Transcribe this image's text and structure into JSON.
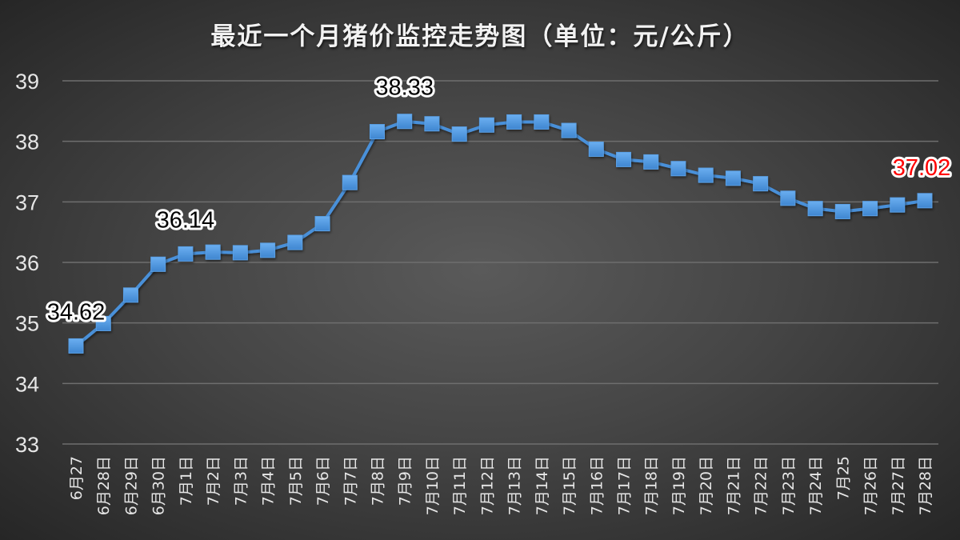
{
  "chart_data": {
    "type": "line",
    "title": "最近一个月猪价监控走势图（单位：元/公斤）",
    "xlabel": "",
    "ylabel": "",
    "ylim": [
      33,
      39
    ],
    "yticks": [
      33,
      34,
      35,
      36,
      37,
      38,
      39
    ],
    "grid": true,
    "legend": null,
    "categories": [
      "6月27",
      "6月28日",
      "6月29日",
      "6月30日",
      "7月1日",
      "7月2日",
      "7月3日",
      "7月4日",
      "7月5日",
      "7月6日",
      "7月7日",
      "7月8日",
      "7月9日",
      "7月10日",
      "7月11日",
      "7月12日",
      "7月13日",
      "7月14日",
      "7月15日",
      "7月16日",
      "7月17日",
      "7月18日",
      "7月19日",
      "7月20日",
      "7月21日",
      "7月22日",
      "7月23日",
      "7月24日",
      "7月25",
      "7月26日",
      "7月27日",
      "7月28日"
    ],
    "series": [
      {
        "name": "猪价",
        "color": "#4a90d9",
        "values": [
          34.62,
          34.99,
          35.46,
          35.97,
          36.14,
          36.17,
          36.16,
          36.2,
          36.33,
          36.64,
          37.32,
          38.16,
          38.33,
          38.29,
          38.12,
          38.27,
          38.32,
          38.32,
          38.18,
          37.87,
          37.7,
          37.66,
          37.55,
          37.44,
          37.39,
          37.3,
          37.06,
          36.89,
          36.84,
          36.89,
          36.95,
          37.02
        ]
      }
    ],
    "annotations": [
      {
        "index": 0,
        "text": "34.62",
        "color": "#000000"
      },
      {
        "index": 4,
        "text": "36.14",
        "color": "#000000"
      },
      {
        "index": 12,
        "text": "38.33",
        "color": "#000000"
      },
      {
        "index": 31,
        "text": "37.02",
        "color": "#ff0000"
      }
    ]
  }
}
